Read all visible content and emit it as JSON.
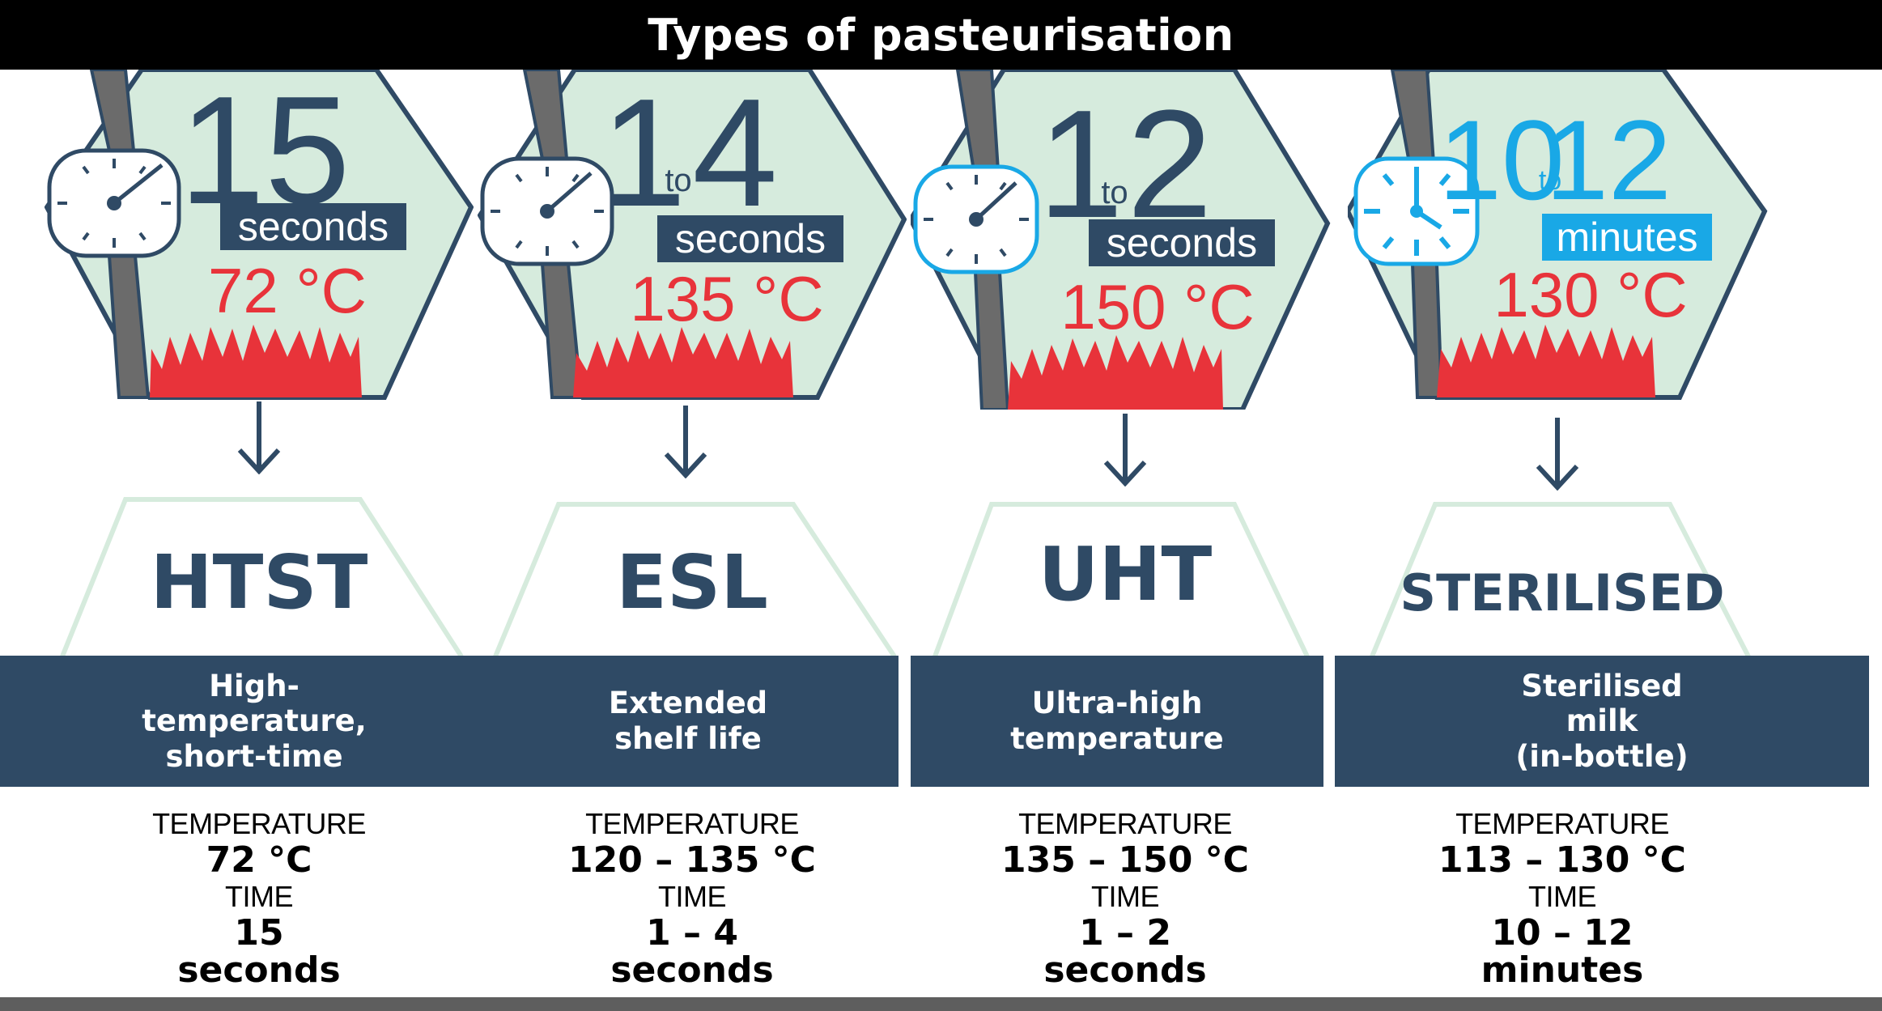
{
  "title": "Types of pasteurisation",
  "colors": {
    "navy": "#2f4a65",
    "mint": "#d6ebdd",
    "mint_border": "#cfe6d6",
    "red": "#e8333a",
    "sky": "#19a8e6",
    "strap": "#6b6b6b"
  },
  "methods": [
    {
      "icon": "watch-icon",
      "digits": {
        "from": "15",
        "joiner": "",
        "to": ""
      },
      "unit": "seconds",
      "temp": "72 °C",
      "abbr": "HTST",
      "full_name": [
        "High-",
        "temperature,",
        "short-time"
      ],
      "temp_label": "TEMPERATURE",
      "temp_value": "72 °C",
      "time_label": "TIME",
      "time_value": [
        "15",
        "seconds"
      ]
    },
    {
      "icon": "watch-icon",
      "digits": {
        "from": "1",
        "joiner": "to",
        "to": "4"
      },
      "unit": "seconds",
      "temp": "135 °C",
      "abbr": "ESL",
      "full_name": [
        "Extended",
        "shelf life"
      ],
      "temp_label": "TEMPERATURE",
      "temp_value": "120 – 135 °C",
      "time_label": "TIME",
      "time_value": [
        "1 – 4",
        "seconds"
      ]
    },
    {
      "icon": "watch-icon",
      "digits": {
        "from": "1",
        "joiner": "to",
        "to": "2"
      },
      "unit": "seconds",
      "temp": "150 °C",
      "abbr": "UHT",
      "full_name": [
        "Ultra-high",
        "temperature"
      ],
      "temp_label": "TEMPERATURE",
      "temp_value": "135 – 150 °C",
      "time_label": "TIME",
      "time_value": [
        "1 – 2",
        "seconds"
      ]
    },
    {
      "icon": "clock-icon",
      "digits": {
        "from": "10",
        "joiner": "to",
        "to": "12"
      },
      "unit": "minutes",
      "temp": "130 °C",
      "abbr": "STERILISED",
      "full_name": [
        "Sterilised",
        "milk",
        "(in-bottle)"
      ],
      "temp_label": "TEMPERATURE",
      "temp_value": "113 – 130 °C",
      "time_label": "TIME",
      "time_value": [
        "10 – 12",
        "minutes"
      ]
    }
  ]
}
